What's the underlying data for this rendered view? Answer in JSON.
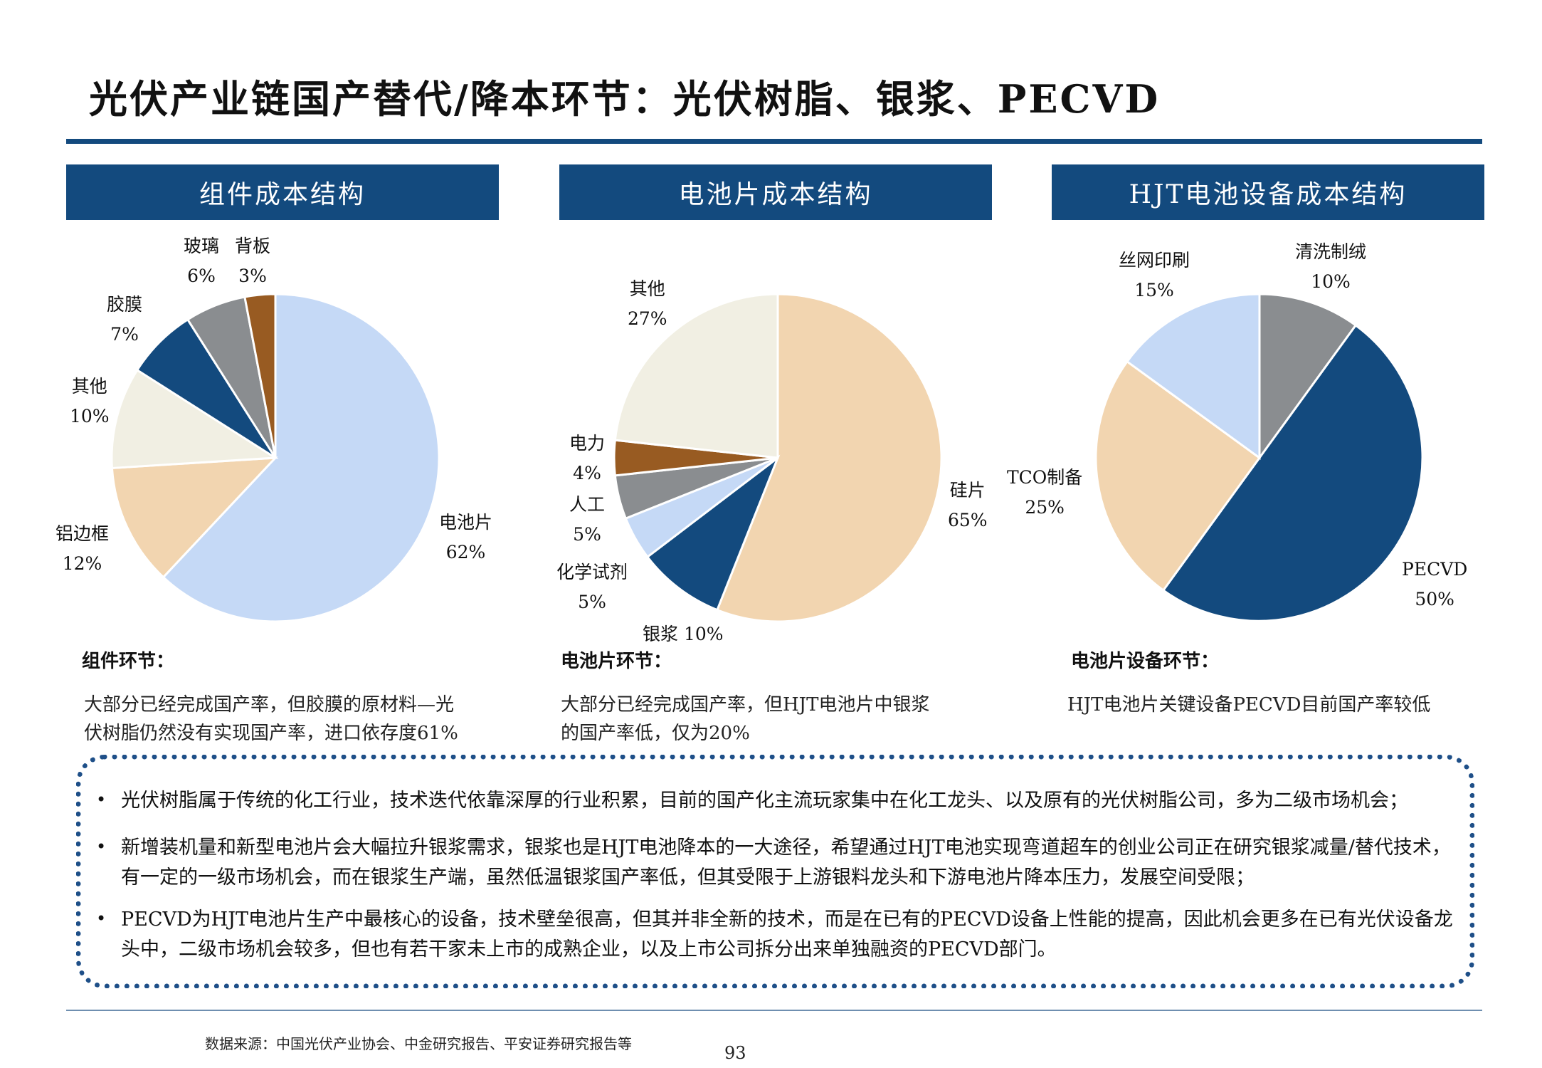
{
  "title": "光伏产业链国产替代/降本环节：光伏树脂、银浆、PECVD",
  "chart_data": [
    {
      "type": "pie",
      "title": "组件成本结构",
      "categories": [
        "电池片",
        "铝边框",
        "其他",
        "胶膜",
        "玻璃",
        "背板"
      ],
      "values": [
        62,
        12,
        10,
        7,
        6,
        3
      ],
      "value_labels": [
        "62%",
        "12%",
        "10%",
        "7%",
        "6%",
        "3%"
      ],
      "colors": [
        "#c5d9f6",
        "#f2d5b0",
        "#f1efe3",
        "#134a7e",
        "#8a8d90",
        "#985b22"
      ],
      "start_angle": 0,
      "direction": "clockwise"
    },
    {
      "type": "pie",
      "title": "电池片成本结构",
      "categories": [
        "硅片",
        "银浆",
        "化学试剂",
        "人工",
        "电力",
        "其他"
      ],
      "values": [
        65,
        10,
        5,
        5,
        4,
        27
      ],
      "value_labels": [
        "65%",
        "10%",
        "5%",
        "5%",
        "4%",
        "27%"
      ],
      "colors": [
        "#f2d5b0",
        "#134a7e",
        "#c5d9f6",
        "#8a8d90",
        "#985b22",
        "#f1efe3"
      ],
      "start_angle": 0,
      "direction": "clockwise"
    },
    {
      "type": "pie",
      "title": "HJT电池设备成本结构",
      "categories": [
        "清洗制绒",
        "PECVD",
        "TCO制备",
        "丝网印刷"
      ],
      "values": [
        10,
        50,
        25,
        15
      ],
      "value_labels": [
        "10%",
        "50%",
        "25%",
        "15%"
      ],
      "colors": [
        "#8a8d90",
        "#134a7e",
        "#f2d5b0",
        "#c5d9f6"
      ],
      "start_angle": 0,
      "direction": "clockwise"
    }
  ],
  "sections": [
    {
      "title": "组件环节：",
      "desc": [
        "大部分已经完成国产率，但胶膜的原材料—光",
        "伏树脂仍然没有实现国产率，进口依存度61%"
      ]
    },
    {
      "title": "电池片环节：",
      "desc": [
        "大部分已经完成国产率，但HJT电池片中银浆",
        "的国产率低，仅为20%"
      ]
    },
    {
      "title": "电池片设备环节：",
      "desc": [
        "HJT电池片关键设备PECVD目前国产率较低"
      ]
    }
  ],
  "bullets": [
    {
      "text": "光伏树脂属于传统的化工行业，技术迭代依靠深厚的行业积累，目前的国产化主流玩家集中在化工龙头、以及原有的光伏树脂公司，多为二级市场机会；"
    },
    {
      "text": "新增装机量和新型电池片会大幅拉升银浆需求，银浆也是HJT电池降本的一大途径，希望通过HJT电池实现弯道超车的创业公司正在研究银浆减量/替代技术，有一定的一级市场机会，而在银浆生产端，虽然低温银浆国产率低，但其受限于上游银料龙头和下游电池片降本压力，发展空间受限；"
    },
    {
      "text": "PECVD为HJT电池片生产中最核心的设备，技术壁垒很高，但其并非全新的技术，而是在已有的PECVD设备上性能的提高，因此机会更多在已有光伏设备龙头中，二级市场机会较多，但也有若干家未上市的成熟企业，以及上市公司拆分出来单独融资的PECVD部门。"
    }
  ],
  "bullet_symbol": "•",
  "source_note": "数据来源：中国光伏产业协会、中金研究报告、平安证券研究报告等",
  "page_number": "93"
}
